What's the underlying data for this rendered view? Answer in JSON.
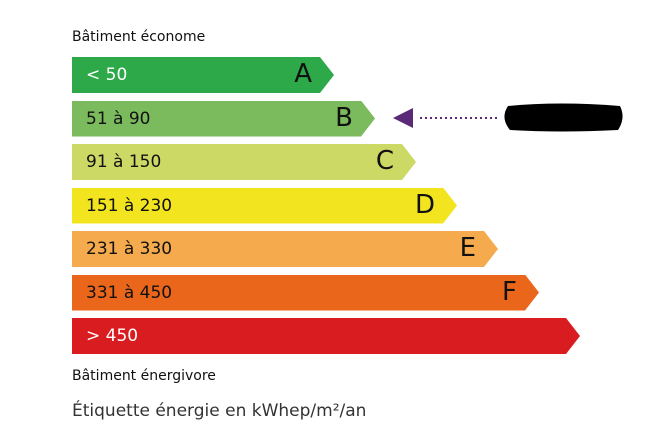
{
  "top_label": "Bâtiment économe",
  "bottom_label": "Bâtiment énergivore",
  "caption": "Étiquette énergie en kWhep/m²/an",
  "bars": [
    {
      "letter": "A",
      "range": "< 50",
      "color": "#2ea94a",
      "text_color": "#ffffff"
    },
    {
      "letter": "B",
      "range": "51 à 90",
      "color": "#7bbb5e",
      "text_color": "#111111"
    },
    {
      "letter": "C",
      "range": "91 à 150",
      "color": "#cdd965",
      "text_color": "#111111"
    },
    {
      "letter": "D",
      "range": "151 à 230",
      "color": "#f2e51f",
      "text_color": "#111111"
    },
    {
      "letter": "E",
      "range": "231 à 330",
      "color": "#f5ab4d",
      "text_color": "#111111"
    },
    {
      "letter": "F",
      "range": "331 à 450",
      "color": "#e9661b",
      "text_color": "#111111"
    },
    {
      "letter": "",
      "range": "> 450",
      "color": "#d91c20",
      "text_color": "#ffffff"
    }
  ],
  "indicator": {
    "class": "B",
    "color": "#5a2a78",
    "value_redacted": true
  }
}
